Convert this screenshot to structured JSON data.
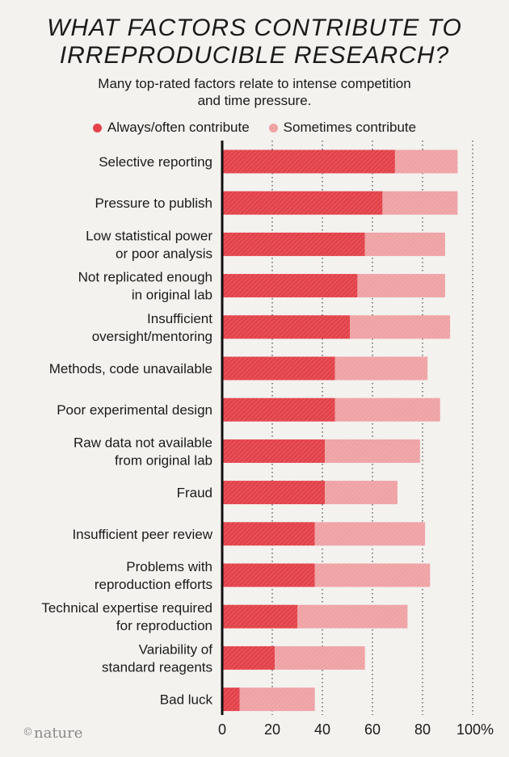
{
  "title_line1": "WHAT FACTORS CONTRIBUTE TO",
  "title_line2": "IRREPRODUCIBLE RESEARCH?",
  "subtitle_line1": "Many top-rated factors relate to intense competition",
  "subtitle_line2": "and time pressure.",
  "credit": "nature",
  "colors": {
    "always": "#e3424a",
    "sometimes": "#efa2a4",
    "background": "#f3f2ef"
  },
  "chart_data": {
    "type": "bar",
    "orientation": "horizontal",
    "stacked": true,
    "categories": [
      [
        "Selective reporting"
      ],
      [
        "Pressure to publish"
      ],
      [
        "Low statistical power",
        "or poor analysis"
      ],
      [
        "Not replicated enough",
        "in original lab"
      ],
      [
        "Insufficient",
        "oversight/mentoring"
      ],
      [
        "Methods, code unavailable"
      ],
      [
        "Poor experimental design"
      ],
      [
        "Raw data not available",
        "from original lab"
      ],
      [
        "Fraud"
      ],
      [
        "Insufficient peer review"
      ],
      [
        "Problems with",
        "reproduction efforts"
      ],
      [
        "Technical expertise required",
        "for reproduction"
      ],
      [
        "Variability of",
        "standard reagents"
      ],
      [
        "Bad luck"
      ]
    ],
    "series": [
      {
        "name": "Always/often contribute",
        "values": [
          69,
          64,
          57,
          54,
          51,
          45,
          45,
          41,
          41,
          37,
          37,
          30,
          21,
          7
        ]
      },
      {
        "name": "Sometimes contribute",
        "values": [
          25,
          30,
          32,
          35,
          40,
          37,
          42,
          38,
          29,
          44,
          46,
          44,
          36,
          30
        ]
      }
    ],
    "xlim": [
      0,
      100
    ],
    "xticks": [
      "0",
      "20",
      "40",
      "60",
      "80",
      "100%"
    ],
    "grid": true,
    "legend": "top-center"
  }
}
